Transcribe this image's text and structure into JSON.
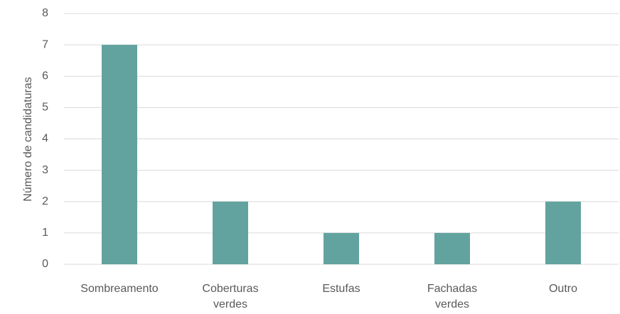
{
  "chart_data": {
    "type": "bar",
    "y_label": "Número de candidaturas",
    "categories": [
      "Sombreamento",
      "Coberturas verdes",
      "Estufas",
      "Fachadas verdes",
      "Outro"
    ],
    "values": [
      7,
      2,
      1,
      1,
      2
    ],
    "color": "#62a39f",
    "ylim": [
      0,
      8
    ],
    "yticks": [
      0,
      1,
      2,
      3,
      4,
      5,
      6,
      7,
      8
    ],
    "grid": true
  }
}
